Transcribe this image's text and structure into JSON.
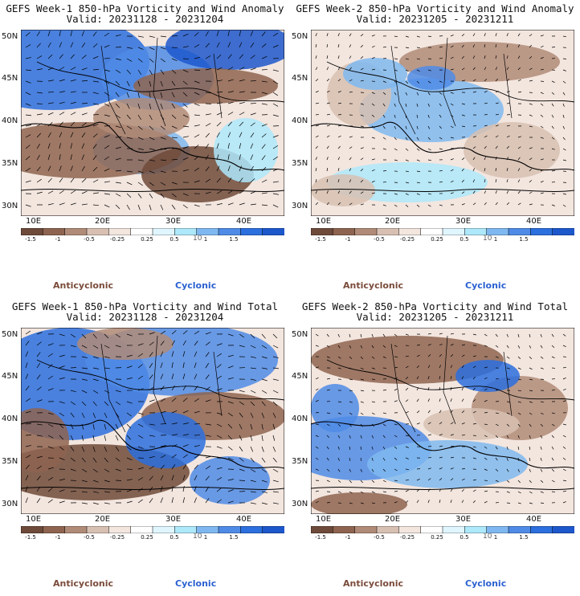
{
  "colors": {
    "anticyclonic": "#7a4b3a",
    "cyclonic": "#2b61d0",
    "colorbar": [
      "#6e4a3a",
      "#8e6450",
      "#b08b78",
      "#d7bfb2",
      "#f3e6df",
      "#ffffff",
      "#e0f6ff",
      "#aee8fb",
      "#7fb8f0",
      "#4f8be6",
      "#2c6fde",
      "#1d57cc"
    ]
  },
  "panels": [
    {
      "title": "GEFS Week-1 850-hPa Vorticity and Wind Anomaly",
      "valid": "Valid: 20231128 - 20231204",
      "kind": "anomaly"
    },
    {
      "title": "GEFS Week-2 850-hPa Vorticity and Wind Anomaly",
      "valid": "Valid: 20231205 - 20231211",
      "kind": "anomaly"
    },
    {
      "title": "GEFS Week-1 850-hPa Vorticity and Wind Total",
      "valid": "Valid: 20231128 - 20231204",
      "kind": "total"
    },
    {
      "title": "GEFS Week-2 850-hPa Vorticity and Wind Total",
      "valid": "Valid: 20231205 - 20231211",
      "kind": "total"
    }
  ],
  "axes": {
    "lat_labels": [
      "50N",
      "45N",
      "40N",
      "35N",
      "30N"
    ],
    "lon_labels": [
      "10E",
      "20E",
      "30E",
      "40E"
    ]
  },
  "colorbar": {
    "labels": [
      "-1.5",
      "-1",
      "-0.5",
      "-0.25",
      "0.25",
      "0.5",
      "1",
      "1.5"
    ],
    "unit": "10"
  },
  "legend": {
    "anticyclonic": "Anticyclonic",
    "cyclonic": "Cyclonic"
  }
}
